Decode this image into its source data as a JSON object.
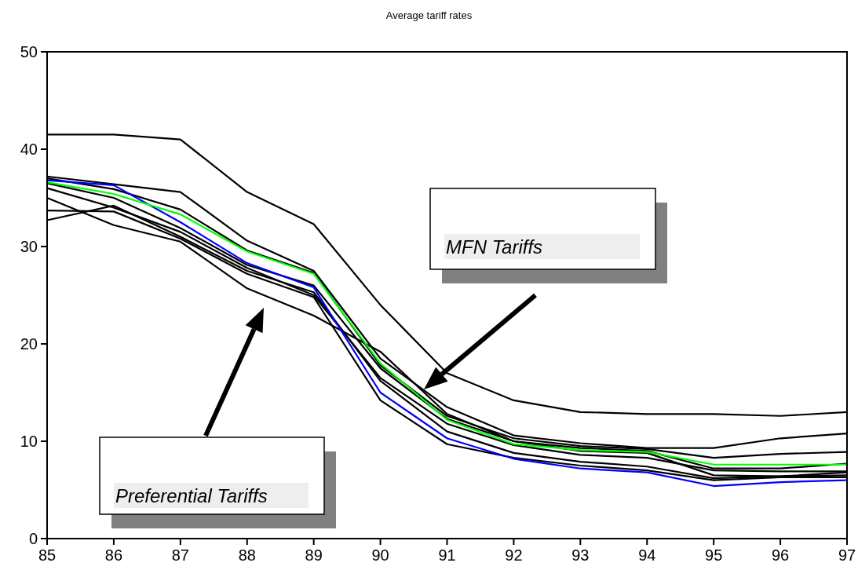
{
  "chart_data": {
    "type": "line",
    "title": "Average tariff rates",
    "x": [
      85,
      86,
      87,
      88,
      89,
      90,
      91,
      92,
      93,
      94,
      95,
      96,
      97
    ],
    "xlim": [
      85,
      97
    ],
    "xticks": [
      85,
      86,
      87,
      88,
      89,
      90,
      91,
      92,
      93,
      94,
      95,
      96,
      97
    ],
    "ylim": [
      0,
      50
    ],
    "yticks": [
      0,
      10,
      20,
      30,
      40,
      50
    ],
    "grid": false,
    "marker": "none",
    "line_style": "solid",
    "series": [
      {
        "color": "#000000",
        "values": [
          41.5,
          41.5,
          41,
          35.6,
          32.3,
          24,
          17,
          14.2,
          13,
          12.8,
          12.8,
          12.6,
          13
        ]
      },
      {
        "color": "#000000",
        "values": [
          37.2,
          36.4,
          35.6,
          30.6,
          27.5,
          18.5,
          13.5,
          10.6,
          9.8,
          9.3,
          9.3,
          10.3,
          10.8
        ]
      },
      {
        "color": "#000000",
        "values": [
          37,
          35.9,
          33.8,
          29.6,
          27.3,
          17.8,
          12.6,
          10.3,
          9.5,
          9.2,
          8.3,
          8.7,
          8.9
        ]
      },
      {
        "color": "#000000",
        "values": [
          36.5,
          35,
          31.9,
          28.1,
          26,
          17.5,
          12.3,
          10,
          9.3,
          9,
          7.2,
          7.2,
          7.7
        ]
      },
      {
        "color": "#000000",
        "values": [
          36,
          34,
          31.5,
          27.8,
          25,
          16.5,
          11.8,
          9.6,
          8.6,
          8.3,
          7,
          6.9,
          6.9
        ]
      },
      {
        "color": "#000000",
        "values": [
          35,
          32.2,
          30.5,
          25.7,
          22.9,
          19.2,
          12.8,
          10,
          9,
          8.8,
          6.5,
          6.4,
          6.5
        ]
      },
      {
        "color": "#000000",
        "values": [
          33.7,
          33.6,
          30.8,
          27.2,
          24.8,
          14.2,
          9.7,
          8.3,
          7.5,
          7,
          6,
          6.3,
          6.3
        ]
      },
      {
        "color": "#000000",
        "values": [
          32.7,
          34.2,
          31,
          27.5,
          25.3,
          16.2,
          11,
          8.8,
          7.9,
          7.4,
          6.2,
          6.4,
          6.8
        ]
      },
      {
        "color": "#0000ff",
        "values": [
          36.8,
          36.3,
          32.5,
          28.3,
          25.8,
          15,
          10.3,
          8.2,
          7.2,
          6.8,
          5.4,
          5.8,
          6
        ]
      },
      {
        "color": "#00ff00",
        "values": [
          36.6,
          35.4,
          33.3,
          29.5,
          27.2,
          18,
          12.2,
          9.7,
          9.1,
          8.9,
          7.6,
          7.6,
          7.6
        ]
      }
    ],
    "annotations": [
      "MFN Tariffs",
      "Preferential Tariffs"
    ]
  }
}
